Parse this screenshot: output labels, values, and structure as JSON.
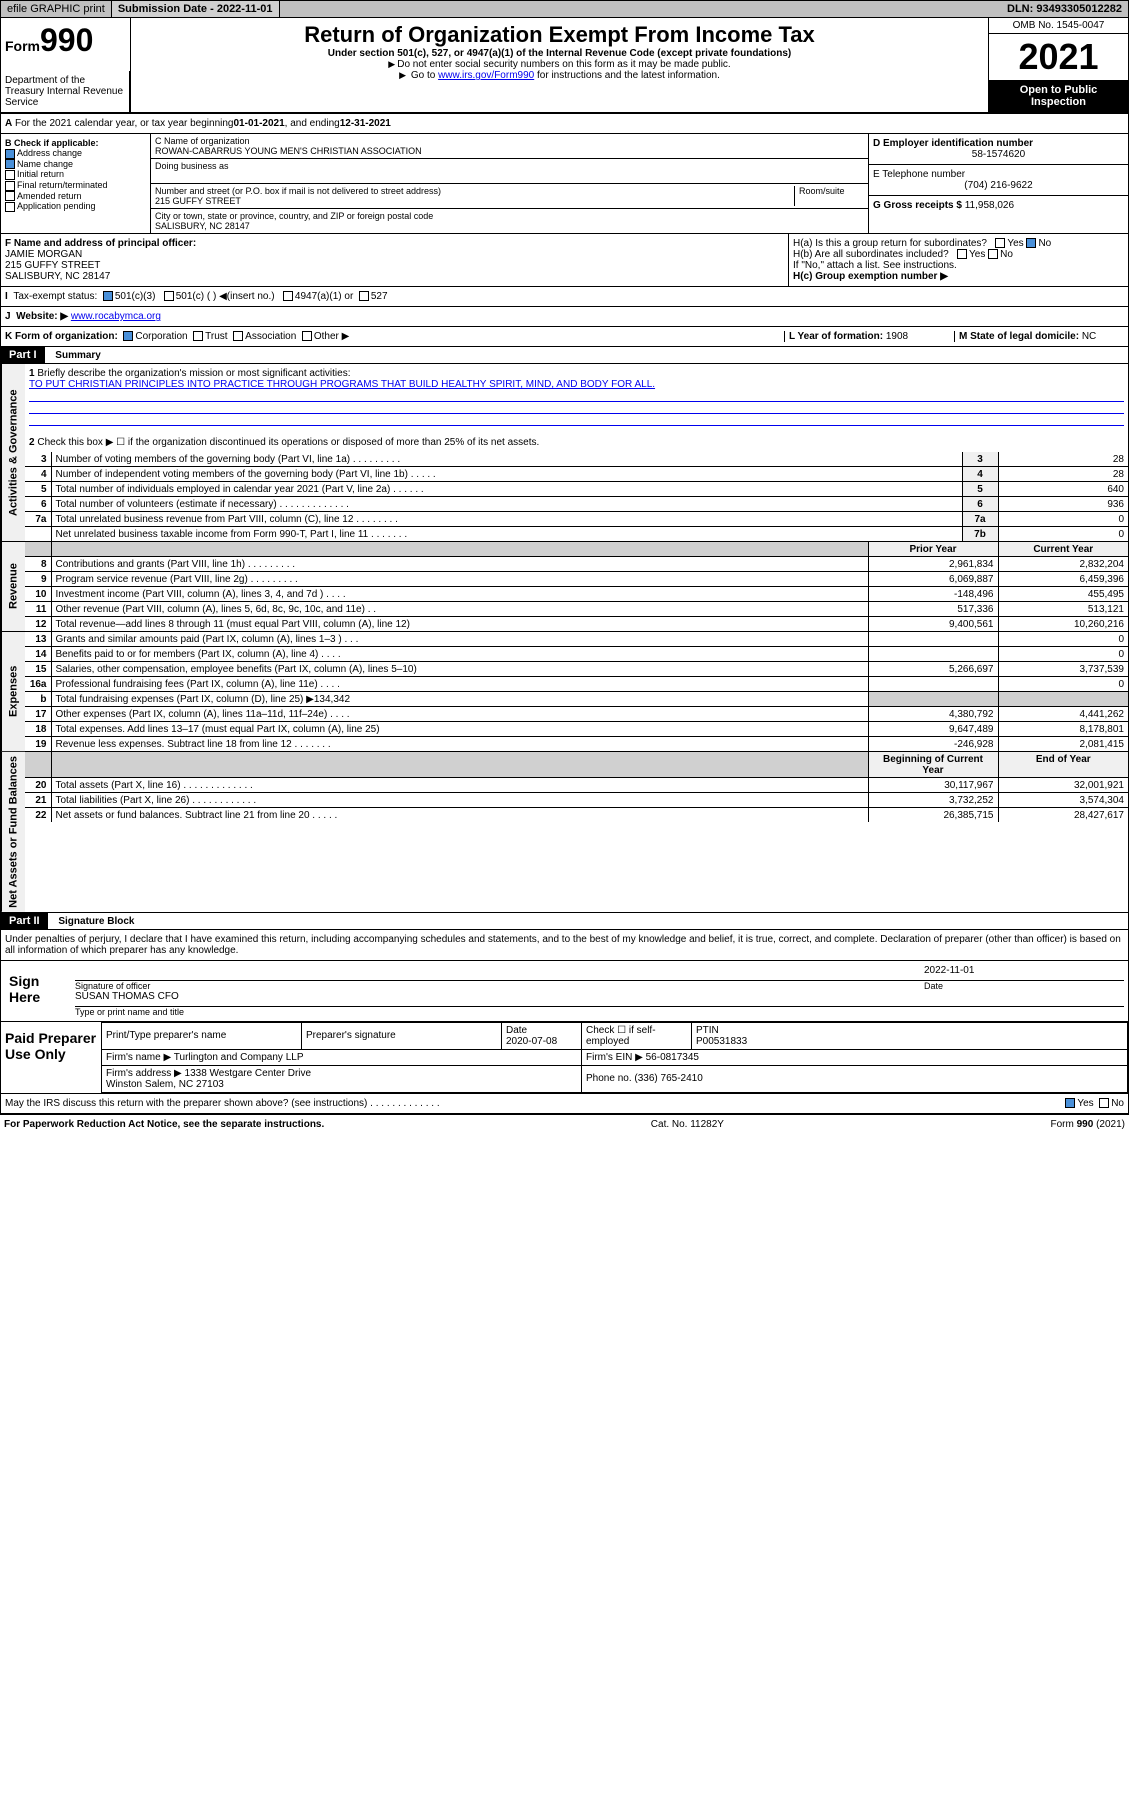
{
  "topbar": {
    "efile": "efile GRAPHIC print",
    "submission_label": "Submission Date - 2022-11-01",
    "dln": "DLN: 93493305012282"
  },
  "header": {
    "form_word": "Form",
    "form_num": "990",
    "title": "Return of Organization Exempt From Income Tax",
    "sub": "Under section 501(c), 527, or 4947(a)(1) of the Internal Revenue Code (except private foundations)",
    "note1": "Do not enter social security numbers on this form as it may be made public.",
    "note2_pre": "Go to ",
    "note2_link": "www.irs.gov/Form990",
    "note2_post": " for instructions and the latest information.",
    "omb": "OMB No. 1545-0047",
    "year": "2021",
    "open_public": "Open to Public Inspection",
    "dept": "Department of the Treasury Internal Revenue Service"
  },
  "row_a": {
    "text_pre": "For the 2021 calendar year, or tax year beginning ",
    "begin": "01-01-2021",
    "mid": " , and ending ",
    "end": "12-31-2021"
  },
  "section_b": {
    "label": "B Check if applicable:",
    "items": [
      "Address change",
      "Name change",
      "Initial return",
      "Final return/terminated",
      "Amended return",
      "Application pending"
    ],
    "checked": [
      true,
      true,
      false,
      false,
      false,
      false
    ]
  },
  "section_c": {
    "name_label": "C Name of organization",
    "name": "ROWAN-CABARRUS YOUNG MEN'S CHRISTIAN ASSOCIATION",
    "dba_label": "Doing business as",
    "dba": "",
    "addr_label": "Number and street (or P.O. box if mail is not delivered to street address)",
    "room_label": "Room/suite",
    "addr": "215 GUFFY STREET",
    "city_label": "City or town, state or province, country, and ZIP or foreign postal code",
    "city": "SALISBURY, NC  28147"
  },
  "section_d": {
    "label": "D Employer identification number",
    "value": "58-1574620"
  },
  "section_e": {
    "label": "E Telephone number",
    "value": "(704) 216-9622"
  },
  "section_g": {
    "label": "G Gross receipts $",
    "value": "11,958,026"
  },
  "section_f": {
    "label": "F  Name and address of principal officer:",
    "name": "JAMIE MORGAN",
    "addr": "215 GUFFY STREET",
    "city": "SALISBURY, NC  28147"
  },
  "section_h": {
    "ha": "H(a)  Is this a group return for subordinates?",
    "ha_yes": "Yes",
    "ha_no": "No",
    "hb": "H(b)  Are all subordinates included?",
    "hb_note": "If \"No,\" attach a list. See instructions.",
    "hc": "H(c)  Group exemption number ▶"
  },
  "section_i": {
    "label": "Tax-exempt status:",
    "opts": [
      "501(c)(3)",
      "501(c) (  ) ◀(insert no.)",
      "4947(a)(1) or",
      "527"
    ]
  },
  "section_j": {
    "label": "Website: ▶",
    "value": "www.rocabymca.org"
  },
  "section_k": {
    "label": "K Form of organization:",
    "opts": [
      "Corporation",
      "Trust",
      "Association",
      "Other ▶"
    ]
  },
  "section_l": {
    "label": "L Year of formation:",
    "value": "1908"
  },
  "section_m": {
    "label": "M State of legal domicile:",
    "value": "NC"
  },
  "part1": {
    "header": "Part I",
    "title": "Summary",
    "line1_label": "Briefly describe the organization's mission or most significant activities:",
    "mission": "TO PUT CHRISTIAN PRINCIPLES INTO PRACTICE THROUGH PROGRAMS THAT BUILD HEALTHY SPIRIT, MIND, AND BODY FOR ALL.",
    "line2": "Check this box ▶ ☐  if the organization discontinued its operations or disposed of more than 25% of its net assets.",
    "governance_rows": [
      {
        "n": "3",
        "desc": "Number of voting members of the governing body (Part VI, line 1a)   .    .    .    .    .    .    .    .    .",
        "box": "3",
        "val": "28"
      },
      {
        "n": "4",
        "desc": "Number of independent voting members of the governing body (Part VI, line 1b)   .    .    .    .    .",
        "box": "4",
        "val": "28"
      },
      {
        "n": "5",
        "desc": "Total number of individuals employed in calendar year 2021 (Part V, line 2a)   .    .    .    .    .    .",
        "box": "5",
        "val": "640"
      },
      {
        "n": "6",
        "desc": "Total number of volunteers (estimate if necessary)   .    .    .    .    .    .    .    .    .    .    .    .    .",
        "box": "6",
        "val": "936"
      },
      {
        "n": "7a",
        "desc": "Total unrelated business revenue from Part VIII, column (C), line 12   .    .    .    .    .    .    .    .",
        "box": "7a",
        "val": "0"
      },
      {
        "n": "",
        "desc": "Net unrelated business taxable income from Form 990-T, Part I, line 11   .    .    .    .    .    .    .",
        "box": "7b",
        "val": "0"
      }
    ],
    "col_hdr_prior": "Prior Year",
    "col_hdr_curr": "Current Year",
    "revenue_rows": [
      {
        "n": "8",
        "desc": "Contributions and grants (Part VIII, line 1h)   .    .    .    .    .    .    .    .    .",
        "prior": "2,961,834",
        "curr": "2,832,204"
      },
      {
        "n": "9",
        "desc": "Program service revenue (Part VIII, line 2g)   .    .    .    .    .    .    .    .    .",
        "prior": "6,069,887",
        "curr": "6,459,396"
      },
      {
        "n": "10",
        "desc": "Investment income (Part VIII, column (A), lines 3, 4, and 7d )   .    .    .    .",
        "prior": "-148,496",
        "curr": "455,495"
      },
      {
        "n": "11",
        "desc": "Other revenue (Part VIII, column (A), lines 5, 6d, 8c, 9c, 10c, and 11e)   .    .",
        "prior": "517,336",
        "curr": "513,121"
      },
      {
        "n": "12",
        "desc": "Total revenue—add lines 8 through 11 (must equal Part VIII, column (A), line 12)",
        "prior": "9,400,561",
        "curr": "10,260,216"
      }
    ],
    "expense_rows": [
      {
        "n": "13",
        "desc": "Grants and similar amounts paid (Part IX, column (A), lines 1–3 )   .    .    .",
        "prior": "",
        "curr": "0"
      },
      {
        "n": "14",
        "desc": "Benefits paid to or for members (Part IX, column (A), line 4)   .    .    .    .",
        "prior": "",
        "curr": "0"
      },
      {
        "n": "15",
        "desc": "Salaries, other compensation, employee benefits (Part IX, column (A), lines 5–10)",
        "prior": "5,266,697",
        "curr": "3,737,539"
      },
      {
        "n": "16a",
        "desc": "Professional fundraising fees (Part IX, column (A), line 11e)   .    .    .    .",
        "prior": "",
        "curr": "0"
      },
      {
        "n": "b",
        "desc": "Total fundraising expenses (Part IX, column (D), line 25) ▶134,342",
        "prior": "shade",
        "curr": "shade"
      },
      {
        "n": "17",
        "desc": "Other expenses (Part IX, column (A), lines 11a–11d, 11f–24e)   .    .    .    .",
        "prior": "4,380,792",
        "curr": "4,441,262"
      },
      {
        "n": "18",
        "desc": "Total expenses. Add lines 13–17 (must equal Part IX, column (A), line 25)",
        "prior": "9,647,489",
        "curr": "8,178,801"
      },
      {
        "n": "19",
        "desc": "Revenue less expenses. Subtract line 18 from line 12  .    .    .    .    .    .    .",
        "prior": "-246,928",
        "curr": "2,081,415"
      }
    ],
    "col_hdr_begin": "Beginning of Current Year",
    "col_hdr_end": "End of Year",
    "asset_rows": [
      {
        "n": "20",
        "desc": "Total assets (Part X, line 16)  .    .    .    .    .    .    .    .    .    .    .    .    .",
        "prior": "30,117,967",
        "curr": "32,001,921"
      },
      {
        "n": "21",
        "desc": "Total liabilities (Part X, line 26)  .    .    .    .    .    .    .    .    .    .    .    .",
        "prior": "3,732,252",
        "curr": "3,574,304"
      },
      {
        "n": "22",
        "desc": "Net assets or fund balances. Subtract line 21 from line 20  .    .    .    .    .",
        "prior": "26,385,715",
        "curr": "28,427,617"
      }
    ]
  },
  "part2": {
    "header": "Part II",
    "title": "Signature Block",
    "declaration": "Under penalties of perjury, I declare that I have examined this return, including accompanying schedules and statements, and to the best of my knowledge and belief, it is true, correct, and complete. Declaration of preparer (other than officer) is based on all information of which preparer has any knowledge.",
    "sign_here": "Sign Here",
    "sig_officer": "Signature of officer",
    "sig_date": "2022-11-01",
    "date_label": "Date",
    "officer_name": "SUSAN THOMAS CFO",
    "type_name": "Type or print name and title",
    "paid_label": "Paid Preparer Use Only",
    "prep_name_label": "Print/Type preparer's name",
    "prep_sig_label": "Preparer's signature",
    "prep_date_label": "Date",
    "prep_date": "2020-07-08",
    "check_label": "Check ☐ if self-employed",
    "ptin_label": "PTIN",
    "ptin": "P00531833",
    "firm_name_label": "Firm's name   ▶",
    "firm_name": "Turlington and Company LLP",
    "firm_ein_label": "Firm's EIN ▶",
    "firm_ein": "56-0817345",
    "firm_addr_label": "Firm's address ▶",
    "firm_addr1": "1338 Westgare Center Drive",
    "firm_addr2": "Winston Salem, NC  27103",
    "phone_label": "Phone no.",
    "phone": "(336) 765-2410",
    "discuss": "May the IRS discuss this return with the preparer shown above? (see instructions)   .    .    .    .    .    .    .    .    .    .    .    .    .",
    "yes": "Yes",
    "no": "No"
  },
  "footer": {
    "left": "For Paperwork Reduction Act Notice, see the separate instructions.",
    "mid": "Cat. No. 11282Y",
    "right": "Form 990 (2021)"
  },
  "side_labels": {
    "gov": "Activities & Governance",
    "rev": "Revenue",
    "exp": "Expenses",
    "net": "Net Assets or Fund Balances"
  }
}
